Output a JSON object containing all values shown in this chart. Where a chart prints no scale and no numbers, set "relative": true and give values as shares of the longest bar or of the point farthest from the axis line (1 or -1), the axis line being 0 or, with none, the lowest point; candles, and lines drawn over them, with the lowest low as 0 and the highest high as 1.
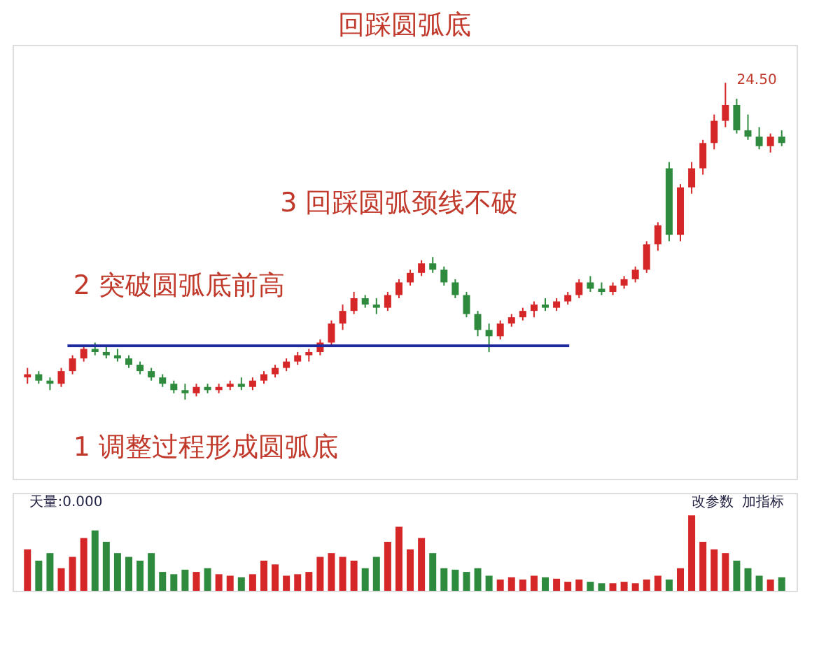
{
  "chart_data": [
    {
      "type": "candlestick",
      "title": "回踩圆弧底",
      "relative": true,
      "tick_labels": false,
      "categories": [
        null,
        null,
        null,
        null,
        null,
        null,
        null,
        null,
        null,
        null,
        null,
        null,
        null,
        null,
        null,
        null,
        null,
        null,
        null,
        null,
        null,
        null,
        null,
        null,
        null,
        null,
        null,
        null,
        null,
        null,
        null,
        null,
        null,
        null,
        null,
        null,
        null,
        null,
        null,
        null,
        null,
        null,
        null,
        null,
        null,
        null,
        null,
        null,
        null,
        null,
        null,
        null,
        null,
        null,
        null,
        null,
        null,
        null,
        null,
        null,
        null,
        null,
        null,
        null,
        null,
        null,
        null,
        null
      ],
      "ohlc": [
        [
          0.07,
          0.1,
          0.05,
          0.08
        ],
        [
          0.08,
          0.09,
          0.05,
          0.06
        ],
        [
          0.06,
          0.07,
          0.03,
          0.05
        ],
        [
          0.05,
          0.1,
          0.04,
          0.09
        ],
        [
          0.09,
          0.14,
          0.08,
          0.13
        ],
        [
          0.13,
          0.17,
          0.12,
          0.16
        ],
        [
          0.16,
          0.18,
          0.14,
          0.15
        ],
        [
          0.15,
          0.17,
          0.13,
          0.14
        ],
        [
          0.14,
          0.16,
          0.12,
          0.13
        ],
        [
          0.13,
          0.14,
          0.1,
          0.11
        ],
        [
          0.11,
          0.12,
          0.08,
          0.09
        ],
        [
          0.09,
          0.1,
          0.06,
          0.07
        ],
        [
          0.07,
          0.08,
          0.04,
          0.05
        ],
        [
          0.05,
          0.06,
          0.02,
          0.03
        ],
        [
          0.03,
          0.05,
          0.0,
          0.02
        ],
        [
          0.02,
          0.05,
          0.01,
          0.04
        ],
        [
          0.04,
          0.05,
          0.02,
          0.03
        ],
        [
          0.03,
          0.05,
          0.02,
          0.04
        ],
        [
          0.04,
          0.06,
          0.03,
          0.05
        ],
        [
          0.05,
          0.07,
          0.03,
          0.04
        ],
        [
          0.04,
          0.07,
          0.03,
          0.06
        ],
        [
          0.06,
          0.09,
          0.05,
          0.08
        ],
        [
          0.08,
          0.11,
          0.07,
          0.1
        ],
        [
          0.1,
          0.13,
          0.09,
          0.12
        ],
        [
          0.12,
          0.15,
          0.11,
          0.14
        ],
        [
          0.14,
          0.16,
          0.12,
          0.15
        ],
        [
          0.15,
          0.19,
          0.14,
          0.18
        ],
        [
          0.18,
          0.25,
          0.17,
          0.24
        ],
        [
          0.24,
          0.3,
          0.22,
          0.28
        ],
        [
          0.28,
          0.34,
          0.27,
          0.32
        ],
        [
          0.32,
          0.33,
          0.29,
          0.3
        ],
        [
          0.3,
          0.32,
          0.27,
          0.29
        ],
        [
          0.29,
          0.34,
          0.28,
          0.33
        ],
        [
          0.33,
          0.38,
          0.32,
          0.37
        ],
        [
          0.37,
          0.41,
          0.36,
          0.4
        ],
        [
          0.4,
          0.44,
          0.39,
          0.43
        ],
        [
          0.43,
          0.45,
          0.4,
          0.41
        ],
        [
          0.41,
          0.42,
          0.36,
          0.37
        ],
        [
          0.37,
          0.38,
          0.32,
          0.33
        ],
        [
          0.33,
          0.34,
          0.26,
          0.27
        ],
        [
          0.27,
          0.28,
          0.2,
          0.22
        ],
        [
          0.22,
          0.24,
          0.15,
          0.2
        ],
        [
          0.2,
          0.25,
          0.19,
          0.24
        ],
        [
          0.24,
          0.27,
          0.23,
          0.26
        ],
        [
          0.26,
          0.29,
          0.25,
          0.28
        ],
        [
          0.28,
          0.31,
          0.26,
          0.3
        ],
        [
          0.3,
          0.32,
          0.28,
          0.29
        ],
        [
          0.29,
          0.32,
          0.28,
          0.31
        ],
        [
          0.31,
          0.34,
          0.3,
          0.33
        ],
        [
          0.33,
          0.38,
          0.32,
          0.37
        ],
        [
          0.37,
          0.39,
          0.34,
          0.35
        ],
        [
          0.35,
          0.37,
          0.33,
          0.34
        ],
        [
          0.34,
          0.37,
          0.33,
          0.36
        ],
        [
          0.36,
          0.39,
          0.35,
          0.38
        ],
        [
          0.38,
          0.42,
          0.37,
          0.41
        ],
        [
          0.41,
          0.5,
          0.4,
          0.49
        ],
        [
          0.49,
          0.56,
          0.47,
          0.55
        ],
        [
          0.73,
          0.75,
          0.5,
          0.52
        ],
        [
          0.52,
          0.68,
          0.5,
          0.67
        ],
        [
          0.67,
          0.75,
          0.65,
          0.73
        ],
        [
          0.73,
          0.82,
          0.71,
          0.81
        ],
        [
          0.81,
          0.9,
          0.79,
          0.88
        ],
        [
          0.88,
          1,
          0.86,
          0.93
        ],
        [
          0.93,
          0.95,
          0.84,
          0.85
        ],
        [
          0.85,
          0.9,
          0.82,
          0.83
        ],
        [
          0.83,
          0.86,
          0.79,
          0.8
        ],
        [
          0.8,
          0.84,
          0.78,
          0.83
        ],
        [
          0.83,
          0.85,
          0.8,
          0.81
        ]
      ],
      "colors": [
        "#d62728",
        "#2e8b3e",
        "#2e8b3e",
        "#d62728",
        "#d62728",
        "#d62728",
        "#2e8b3e",
        "#2e8b3e",
        "#2e8b3e",
        "#2e8b3e",
        "#2e8b3e",
        "#2e8b3e",
        "#2e8b3e",
        "#2e8b3e",
        "#2e8b3e",
        "#d62728",
        "#2e8b3e",
        "#d62728",
        "#d62728",
        "#2e8b3e",
        "#d62728",
        "#d62728",
        "#d62728",
        "#d62728",
        "#d62728",
        "#d62728",
        "#d62728",
        "#d62728",
        "#d62728",
        "#d62728",
        "#2e8b3e",
        "#2e8b3e",
        "#d62728",
        "#d62728",
        "#d62728",
        "#d62728",
        "#2e8b3e",
        "#2e8b3e",
        "#2e8b3e",
        "#2e8b3e",
        "#2e8b3e",
        "#2e8b3e",
        "#d62728",
        "#d62728",
        "#d62728",
        "#d62728",
        "#2e8b3e",
        "#d62728",
        "#d62728",
        "#d62728",
        "#2e8b3e",
        "#2e8b3e",
        "#d62728",
        "#d62728",
        "#d62728",
        "#d62728",
        "#d62728",
        "#2e8b3e",
        "#d62728",
        "#d62728",
        "#d62728",
        "#d62728",
        "#d62728",
        "#2e8b3e",
        "#2e8b3e",
        "#2e8b3e",
        "#d62728",
        "#2e8b3e"
      ],
      "ref_lines": [
        {
          "axis": "y",
          "value": 0.17,
          "color": "#1f2a9e"
        }
      ],
      "annotations": [
        "3 回踩圆弧颈线不破",
        "2 突破圆弧底前高",
        "1 调整过程形成圆弧底",
        "24.50"
      ]
    },
    {
      "type": "bar",
      "relative": true,
      "tick_labels": false,
      "categories": [
        null,
        null,
        null,
        null,
        null,
        null,
        null,
        null,
        null,
        null,
        null,
        null,
        null,
        null,
        null,
        null,
        null,
        null,
        null,
        null,
        null,
        null,
        null,
        null,
        null,
        null,
        null,
        null,
        null,
        null,
        null,
        null,
        null,
        null,
        null,
        null,
        null,
        null,
        null,
        null,
        null,
        null,
        null,
        null,
        null,
        null,
        null,
        null,
        null,
        null,
        null,
        null,
        null,
        null,
        null,
        null,
        null,
        null,
        null,
        null,
        null,
        null,
        null,
        null,
        null,
        null,
        null,
        null
      ],
      "values": [
        0.55,
        0.4,
        0.5,
        0.3,
        0.45,
        0.7,
        0.8,
        0.65,
        0.5,
        0.45,
        0.4,
        0.5,
        0.25,
        0.22,
        0.28,
        0.25,
        0.3,
        0.22,
        0.2,
        0.18,
        0.22,
        0.4,
        0.35,
        0.2,
        0.22,
        0.25,
        0.45,
        0.5,
        0.45,
        0.4,
        0.3,
        0.45,
        0.65,
        0.85,
        0.55,
        0.7,
        0.5,
        0.3,
        0.28,
        0.25,
        0.3,
        0.2,
        0.15,
        0.18,
        0.15,
        0.2,
        0.18,
        0.16,
        0.12,
        0.15,
        0.12,
        0.1,
        0.1,
        0.12,
        0.1,
        0.15,
        0.2,
        0.15,
        0.3,
        1,
        0.65,
        0.55,
        0.5,
        0.4,
        0.3,
        0.2,
        0.15,
        0.18
      ],
      "colors": [
        "#d62728",
        "#2e8b3e",
        "#2e8b3e",
        "#d62728",
        "#d62728",
        "#d62728",
        "#2e8b3e",
        "#2e8b3e",
        "#2e8b3e",
        "#2e8b3e",
        "#2e8b3e",
        "#2e8b3e",
        "#2e8b3e",
        "#2e8b3e",
        "#2e8b3e",
        "#d62728",
        "#2e8b3e",
        "#d62728",
        "#d62728",
        "#2e8b3e",
        "#d62728",
        "#d62728",
        "#d62728",
        "#d62728",
        "#d62728",
        "#d62728",
        "#d62728",
        "#d62728",
        "#d62728",
        "#d62728",
        "#2e8b3e",
        "#2e8b3e",
        "#d62728",
        "#d62728",
        "#d62728",
        "#d62728",
        "#2e8b3e",
        "#2e8b3e",
        "#2e8b3e",
        "#2e8b3e",
        "#2e8b3e",
        "#2e8b3e",
        "#d62728",
        "#d62728",
        "#d62728",
        "#d62728",
        "#2e8b3e",
        "#d62728",
        "#d62728",
        "#d62728",
        "#2e8b3e",
        "#2e8b3e",
        "#d62728",
        "#d62728",
        "#d62728",
        "#d62728",
        "#d62728",
        "#2e8b3e",
        "#d62728",
        "#d62728",
        "#d62728",
        "#d62728",
        "#d62728",
        "#2e8b3e",
        "#2e8b3e",
        "#2e8b3e",
        "#d62728",
        "#2e8b3e"
      ],
      "annotations": [
        "天量:0.000",
        "改参数",
        "加指标"
      ]
    }
  ]
}
